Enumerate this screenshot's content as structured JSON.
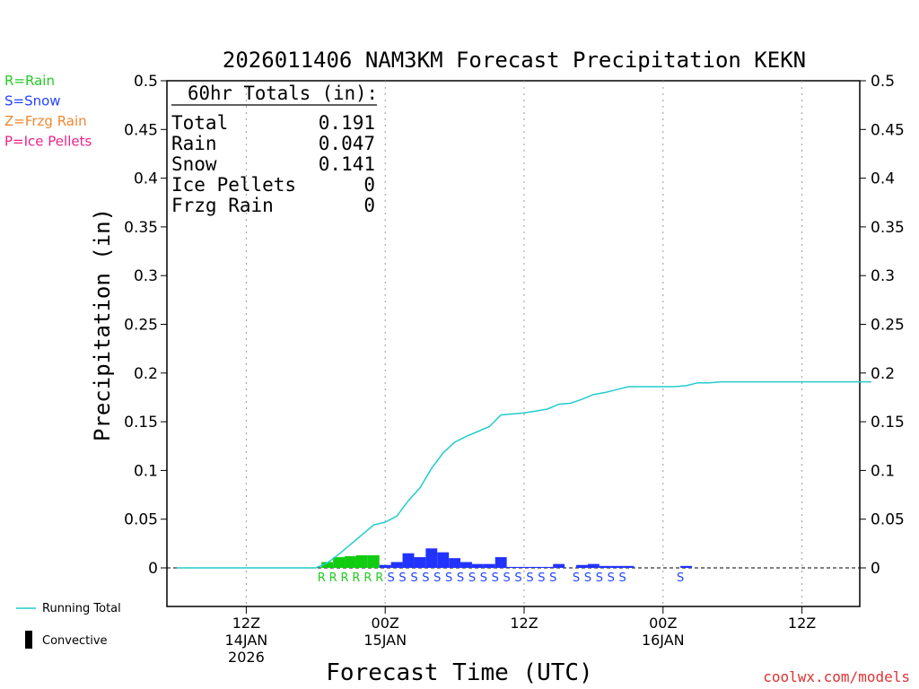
{
  "chart_data": {
    "type": "bar",
    "title": "2026011406 NAM3KM Forecast Precipitation KEKN",
    "xlabel": "Forecast Time (UTC)",
    "ylabel": "Precipitation (in)",
    "ylim": [
      -0.04,
      0.5
    ],
    "xlim_hours": [
      -0.5,
      60.5
    ],
    "y_ticks": [
      "0",
      "0.05",
      "0.1",
      "0.15",
      "0.2",
      "0.25",
      "0.3",
      "0.35",
      "0.4",
      "0.45",
      "0.5"
    ],
    "y_tick_values": [
      0,
      0.05,
      0.1,
      0.15,
      0.2,
      0.25,
      0.3,
      0.35,
      0.4,
      0.45,
      0.5
    ],
    "x_ticks": [
      {
        "hour": 6,
        "label": "12Z",
        "date": "14JAN",
        "year": "2026"
      },
      {
        "hour": 18,
        "label": "00Z",
        "date": "15JAN",
        "year": ""
      },
      {
        "hour": 30,
        "label": "12Z",
        "date": "",
        "year": ""
      },
      {
        "hour": 42,
        "label": "00Z",
        "date": "16JAN",
        "year": ""
      },
      {
        "hour": 54,
        "label": "12Z",
        "date": "",
        "year": ""
      }
    ],
    "legend_types": [
      {
        "text": "R=Rain",
        "color": "#22cc22"
      },
      {
        "text": "S=Snow",
        "color": "#2244ff"
      },
      {
        "text": "Z=Frzg Rain",
        "color": "#ee8833"
      },
      {
        "text": "P=Ice Pellets",
        "color": "#ee2288"
      }
    ],
    "legend_running_total": "Running Total",
    "legend_convective": "Convective",
    "totals": {
      "header": "60hr Totals (in):",
      "rows": [
        {
          "label": "Total",
          "value": "0.191"
        },
        {
          "label": "Rain",
          "value": "0.047"
        },
        {
          "label": "Snow",
          "value": "0.141"
        },
        {
          "label": "Ice Pellets",
          "value": "0"
        },
        {
          "label": "Frzg Rain",
          "value": "0"
        }
      ]
    },
    "hourly_series": [
      {
        "name": "Rain",
        "type": "R",
        "color": "#11cc11",
        "hours": [
          13,
          14,
          15,
          16,
          17
        ],
        "values": [
          0.006,
          0.011,
          0.012,
          0.013,
          0.013
        ]
      },
      {
        "name": "Snow",
        "type": "S",
        "color": "#2233ff",
        "hours": [
          18,
          19,
          20,
          21,
          22,
          23,
          24,
          25,
          26,
          27,
          28,
          29,
          30,
          31,
          32,
          33,
          35,
          36,
          37,
          38,
          39,
          44
        ],
        "values": [
          0.003,
          0.006,
          0.015,
          0.011,
          0.02,
          0.016,
          0.01,
          0.006,
          0.004,
          0.004,
          0.011,
          0.001,
          0.001,
          0.001,
          0.001,
          0.004,
          0.003,
          0.004,
          0.002,
          0.002,
          0.002,
          0.002
        ]
      }
    ],
    "type_labels": [
      {
        "hour": 13,
        "type": "R"
      },
      {
        "hour": 14,
        "type": "R"
      },
      {
        "hour": 15,
        "type": "R"
      },
      {
        "hour": 16,
        "type": "R"
      },
      {
        "hour": 17,
        "type": "R"
      },
      {
        "hour": 18,
        "type": "R"
      },
      {
        "hour": 19,
        "type": "S"
      },
      {
        "hour": 20,
        "type": "S"
      },
      {
        "hour": 21,
        "type": "S"
      },
      {
        "hour": 22,
        "type": "S"
      },
      {
        "hour": 23,
        "type": "S"
      },
      {
        "hour": 24,
        "type": "S"
      },
      {
        "hour": 25,
        "type": "S"
      },
      {
        "hour": 26,
        "type": "S"
      },
      {
        "hour": 27,
        "type": "S"
      },
      {
        "hour": 28,
        "type": "S"
      },
      {
        "hour": 29,
        "type": "S"
      },
      {
        "hour": 30,
        "type": "S"
      },
      {
        "hour": 31,
        "type": "S"
      },
      {
        "hour": 32,
        "type": "S"
      },
      {
        "hour": 33,
        "type": "S"
      },
      {
        "hour": 35,
        "type": "S"
      },
      {
        "hour": 36,
        "type": "S"
      },
      {
        "hour": 37,
        "type": "S"
      },
      {
        "hour": 38,
        "type": "S"
      },
      {
        "hour": 39,
        "type": "S"
      },
      {
        "hour": 44,
        "type": "S"
      }
    ],
    "running_total": {
      "color": "#22cccc",
      "hours": [
        0,
        12,
        13,
        14,
        15,
        16,
        17,
        18,
        19,
        20,
        21,
        22,
        23,
        24,
        25,
        26,
        27,
        28,
        29,
        30,
        31,
        32,
        33,
        34,
        35,
        36,
        37,
        38,
        39,
        40,
        41,
        42,
        43,
        44,
        45,
        46,
        47,
        48,
        49,
        50,
        55,
        60
      ],
      "values": [
        0,
        0,
        0.005,
        0.014,
        0.024,
        0.034,
        0.044,
        0.047,
        0.053,
        0.069,
        0.082,
        0.102,
        0.118,
        0.129,
        0.135,
        0.14,
        0.145,
        0.157,
        0.158,
        0.159,
        0.161,
        0.163,
        0.168,
        0.169,
        0.173,
        0.178,
        0.18,
        0.183,
        0.186,
        0.186,
        0.186,
        0.186,
        0.186,
        0.187,
        0.19,
        0.19,
        0.191,
        0.191,
        0.191,
        0.191,
        0.191,
        0.191
      ]
    }
  },
  "watermark": "coolwx.com/models"
}
